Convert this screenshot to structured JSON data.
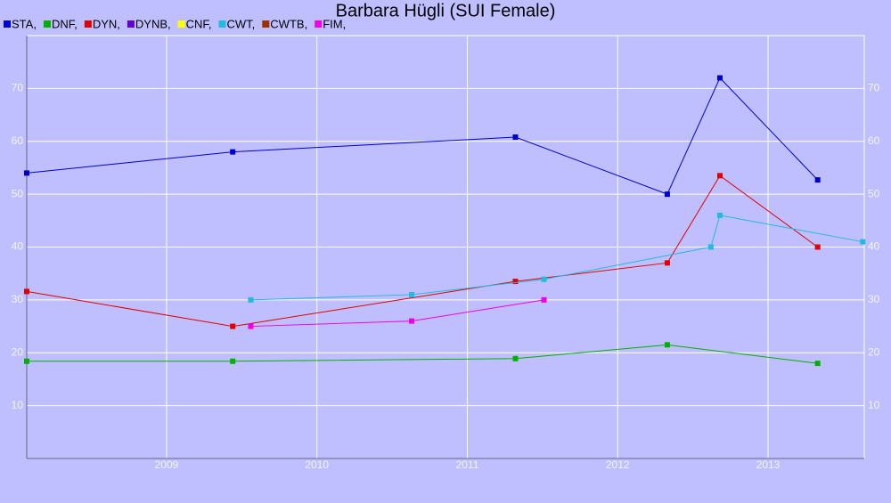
{
  "chart_data": {
    "type": "line",
    "title": "Barbara Hügli (SUI Female)",
    "xlim": [
      2008.07,
      2013.64
    ],
    "xticks": [
      2009,
      2010,
      2011,
      2012,
      2013
    ],
    "ylim": [
      0,
      80
    ],
    "yticks": [
      10,
      20,
      30,
      40,
      50,
      60,
      70
    ],
    "grid": true,
    "series": [
      {
        "name": "STA,",
        "color": "#0000cc",
        "x": [
          2008.07,
          2009.44,
          2011.32,
          2012.33,
          2012.68,
          2013.33
        ],
        "values": [
          54,
          58,
          60.8,
          50,
          72,
          52.7
        ]
      },
      {
        "name": "DNF,",
        "color": "#00b000",
        "x": [
          2008.07,
          2009.44,
          2011.32,
          2012.33,
          2013.33
        ],
        "values": [
          18.4,
          18.4,
          18.9,
          21.5,
          18
        ]
      },
      {
        "name": "DYN,",
        "color": "#e00000",
        "x": [
          2008.07,
          2009.44,
          2011.32,
          2012.33,
          2012.68,
          2013.33
        ],
        "values": [
          31.6,
          25,
          33.5,
          37,
          53.5,
          40
        ]
      },
      {
        "name": "DYNB,",
        "color": "#6600cc",
        "x": [],
        "values": []
      },
      {
        "name": "CNF,",
        "color": "#ffff00",
        "x": [],
        "values": []
      },
      {
        "name": "CWT,",
        "color": "#22bbdd",
        "x": [
          2009.56,
          2010.63,
          2011.51,
          2012.62,
          2012.68,
          2013.63
        ],
        "values": [
          30,
          31,
          33.9,
          40,
          46,
          41
        ]
      },
      {
        "name": "CWTB,",
        "color": "#993300",
        "x": [],
        "values": []
      },
      {
        "name": "FIM,",
        "color": "#ee00ee",
        "x": [
          2009.56,
          2010.63,
          2011.51
        ],
        "values": [
          25,
          26,
          30
        ]
      }
    ]
  }
}
